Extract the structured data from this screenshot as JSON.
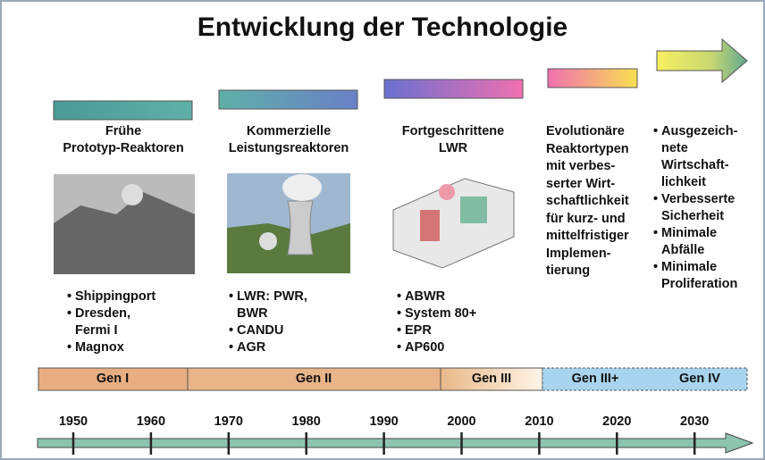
{
  "title": "Entwicklung der Technologie",
  "columns": [
    {
      "heading": [
        "Frühe",
        "Prototyp-Reaktoren"
      ],
      "items": [
        [
          "Shippingport"
        ],
        [
          "Dresden,",
          "Fermi I"
        ],
        [
          "Magnox"
        ]
      ]
    },
    {
      "heading": [
        "Kommerzielle",
        "Leistungsreaktoren"
      ],
      "items": [
        [
          "LWR: PWR,",
          "BWR"
        ],
        [
          "CANDU"
        ],
        [
          "AGR"
        ]
      ]
    },
    {
      "heading": [
        "Fortgeschrittene",
        "LWR"
      ],
      "items": [
        [
          "ABWR"
        ],
        [
          "System 80+"
        ],
        [
          "EPR"
        ],
        [
          "AP600"
        ]
      ]
    },
    {
      "text": [
        "Evolutionäre",
        "Reaktortypen",
        "mit verbes-",
        "serter Wirt-",
        "schaftlichkeit",
        "für kurz- und",
        "mittelfristiger",
        "Implemen-",
        "tierung"
      ]
    },
    {
      "items": [
        [
          "Ausgezeich-",
          "nete",
          "Wirtschaft-",
          "lichkeit"
        ],
        [
          "Verbesserte",
          "Sicherheit"
        ],
        [
          "Minimale",
          "Abfälle"
        ],
        [
          "Minimale",
          "Proliferation"
        ]
      ]
    }
  ],
  "generations": [
    "Gen I",
    "Gen II",
    "Gen III",
    "Gen III+",
    "Gen IV"
  ],
  "years": [
    1950,
    1960,
    1970,
    1980,
    1990,
    2000,
    2010,
    2020,
    2030
  ]
}
